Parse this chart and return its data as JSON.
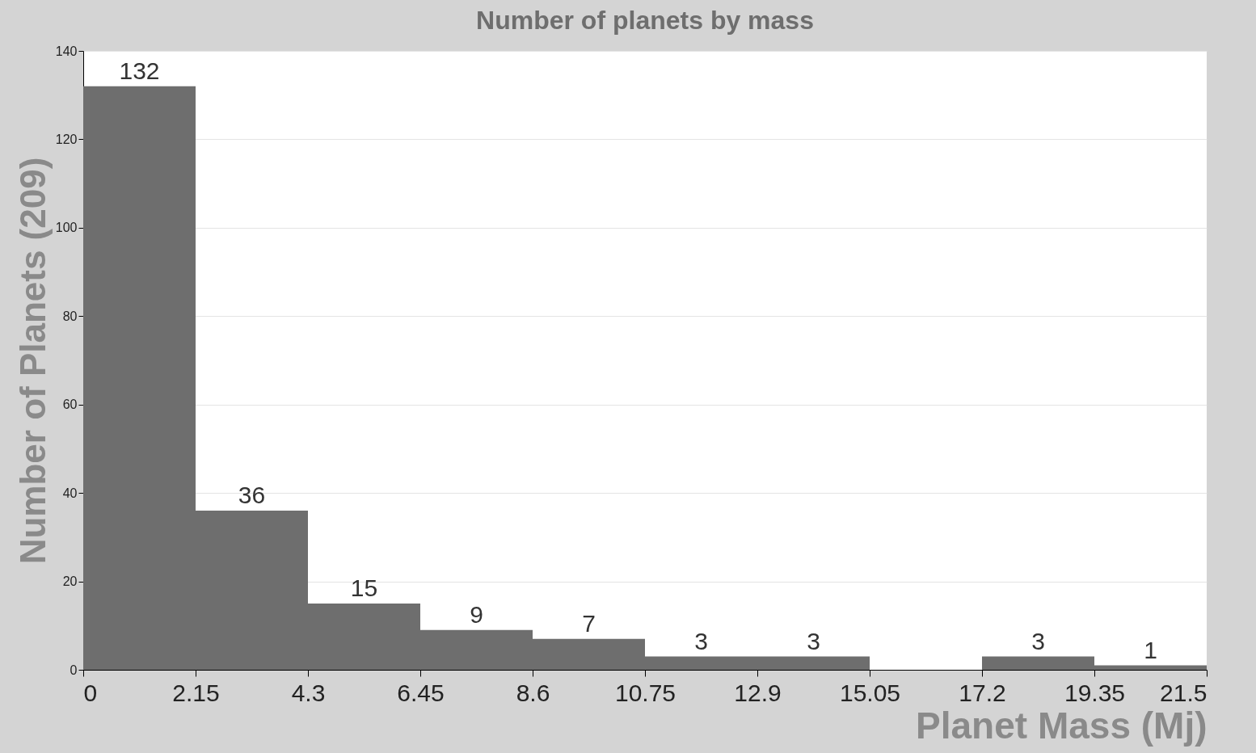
{
  "chart_data": {
    "type": "histogram",
    "title": "Number of planets by mass",
    "xlabel": "Planet Mass (Mj)",
    "ylabel": "Number of Planets (209)",
    "bins": [
      0,
      2.15,
      4.3,
      6.45,
      8.6,
      10.75,
      12.9,
      15.05,
      17.2,
      19.35,
      21.5
    ],
    "values": [
      132,
      36,
      15,
      9,
      7,
      3,
      3,
      0,
      3,
      1
    ],
    "value_labels": [
      "132",
      "36",
      "15",
      "9",
      "7",
      "3",
      "3",
      null,
      "3",
      "1"
    ],
    "color": "#6e6e6e",
    "xlim": [
      0,
      21.5
    ],
    "xticks": [
      0,
      2.15,
      4.3,
      6.45,
      8.6,
      10.75,
      12.9,
      15.05,
      17.2,
      19.35,
      21.5
    ],
    "ylim": [
      0,
      140
    ],
    "yticks": [
      0,
      20,
      40,
      60,
      80,
      100,
      120,
      140
    ],
    "grid": "y"
  }
}
